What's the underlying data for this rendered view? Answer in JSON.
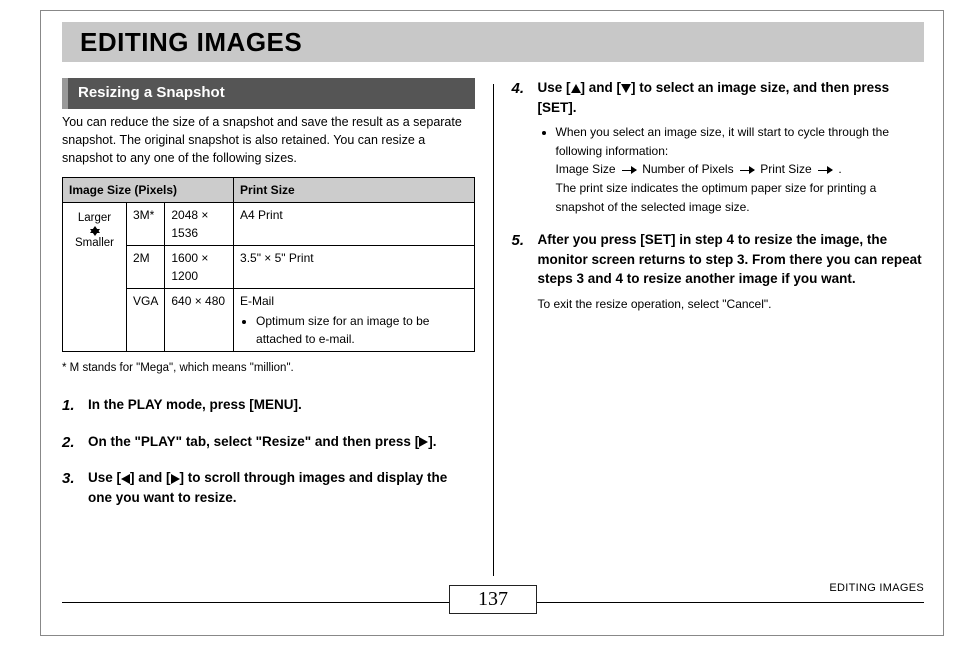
{
  "page": {
    "title": "EDITING IMAGES",
    "section": "Resizing a Snapshot",
    "intro": "You can reduce the size of a snapshot and save the result as a separate snapshot. The original snapshot is also retained. You can resize a snapshot to any one of the following sizes.",
    "footnote": "* M stands for \"Mega\", which means \"million\".",
    "page_number": "137",
    "footer_label": "EDITING IMAGES"
  },
  "table": {
    "headers": {
      "col1": "Image Size (Pixels)",
      "col2": "Print Size"
    },
    "scale": {
      "top": "Larger",
      "bottom": "Smaller"
    },
    "rows": [
      {
        "label": "3M*",
        "pixels": "2048 × 1536",
        "print": "A4 Print"
      },
      {
        "label": "2M",
        "pixels": "1600 × 1200",
        "print": "3.5\" × 5\" Print"
      },
      {
        "label": "VGA",
        "pixels": "640 × 480",
        "print_title": "E-Mail",
        "print_bullet": "Optimum size for an image to be attached to e-mail."
      }
    ]
  },
  "steps": {
    "s1": {
      "num": "1.",
      "main": "In the PLAY mode, press [MENU]."
    },
    "s2": {
      "num": "2.",
      "main_a": "On the \"PLAY\" tab, select \"Resize\" and then press [",
      "main_b": "]."
    },
    "s3": {
      "num": "3.",
      "main_a": "Use [",
      "main_b": "] and [",
      "main_c": "] to scroll through images and display the one you want to resize."
    },
    "s4": {
      "num": "4.",
      "main_a": "Use [",
      "main_b": "] and [",
      "main_c": "] to select an image size, and then press [SET].",
      "bullet_a": "When you select an image size, it will start to cycle through the following information:",
      "seq1": "Image Size",
      "seq2": "Number of Pixels",
      "seq3": "Print Size",
      "seq_end": ".",
      "bullet_b": "The print size indicates the optimum paper size for printing a snapshot of the selected image size."
    },
    "s5": {
      "num": "5.",
      "main": "After you press [SET] in step 4 to resize the image, the monitor screen returns to step 3. From there you can repeat steps 3 and 4 to resize another image if you want.",
      "note": "To exit the resize operation, select \"Cancel\"."
    }
  }
}
